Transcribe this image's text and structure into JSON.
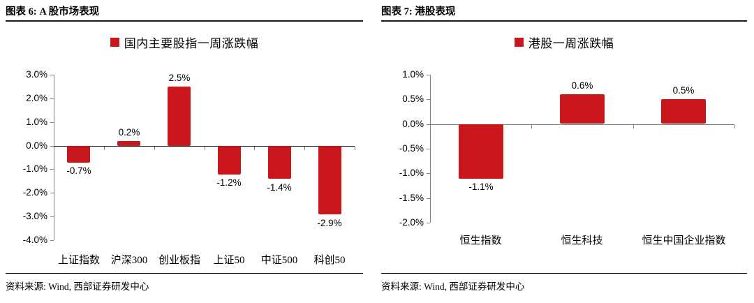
{
  "accent_color": "#c9161d",
  "panels": [
    {
      "title": "图表 6: A 股市场表现",
      "source": "资料来源: Wind, 西部证券研发中心"
    },
    {
      "title": "图表 7: 港股表现",
      "source": "资料来源: Wind, 西部证券研发中心"
    }
  ],
  "chart_data": [
    {
      "type": "bar",
      "title": "图表 6: A 股市场表现",
      "legend": "国内主要股指一周涨跌幅",
      "legend_position": "top-center",
      "categories": [
        "上证指数",
        "沪深300",
        "创业板指",
        "上证50",
        "中证500",
        "科创50"
      ],
      "values": [
        -0.7,
        0.2,
        2.5,
        -1.2,
        -1.4,
        -2.9
      ],
      "data_labels": [
        "-0.7%",
        "0.2%",
        "2.5%",
        "-1.2%",
        "-1.4%",
        "-2.9%"
      ],
      "unit": "%",
      "ylim": [
        -4.0,
        3.0
      ],
      "yticks": [
        3.0,
        2.0,
        1.0,
        0.0,
        -1.0,
        -2.0,
        -3.0,
        -4.0
      ],
      "ytick_labels": [
        "3.0%",
        "2.0%",
        "1.0%",
        "0.0%",
        "-1.0%",
        "-2.0%",
        "-3.0%",
        "-4.0%"
      ],
      "bar_color": "#c9161d",
      "zero_line_color": "#1a1a1a",
      "axis_color": "#808080",
      "grid": false
    },
    {
      "type": "bar",
      "title": "图表 7: 港股表现",
      "legend": "港股一周涨跌幅",
      "legend_position": "top-center",
      "categories": [
        "恒生指数",
        "恒生科技",
        "恒生中国企业指数"
      ],
      "values": [
        -1.1,
        0.6,
        0.5
      ],
      "data_labels": [
        "-1.1%",
        "0.6%",
        "0.5%"
      ],
      "unit": "%",
      "ylim": [
        -2.0,
        1.0
      ],
      "yticks": [
        1.0,
        0.5,
        0.0,
        -0.5,
        -1.0,
        -1.5,
        -2.0
      ],
      "ytick_labels": [
        "1.0%",
        "0.5%",
        "0.0%",
        "-0.5%",
        "-1.0%",
        "-1.5%",
        "-2.0%"
      ],
      "bar_color": "#c9161d",
      "zero_line_color": "#808080",
      "axis_color": "#808080",
      "grid": false
    }
  ]
}
